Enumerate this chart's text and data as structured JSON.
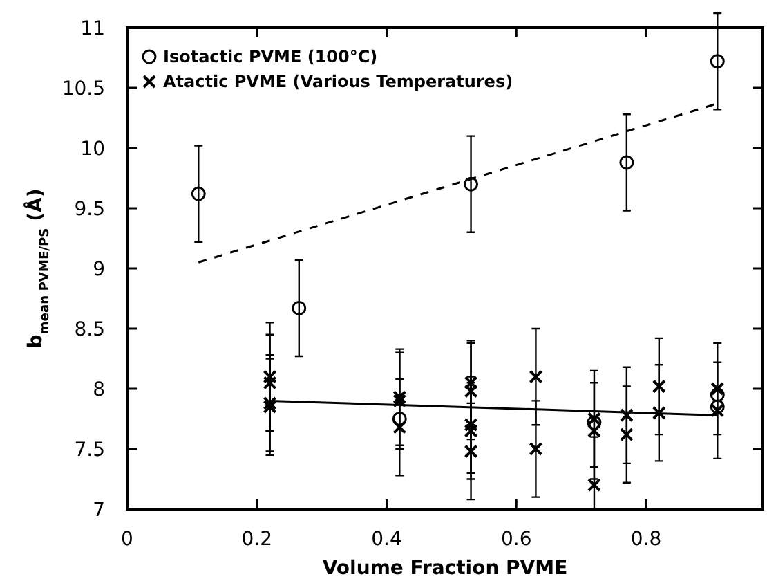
{
  "chart_data": {
    "type": "scatter",
    "xlabel": "Volume Fraction PVME",
    "ylabel": "b$_{mean PVME/PS}$ (Å)",
    "xlim": [
      0,
      0.98
    ],
    "ylim": [
      7,
      11
    ],
    "xticks": [
      0,
      0.2,
      0.4,
      0.6,
      0.8
    ],
    "yticks": [
      7,
      7.5,
      8,
      8.5,
      9,
      9.5,
      10,
      10.5,
      11
    ],
    "grid": false,
    "legend": "top left",
    "series": [
      {
        "name": "Isotactic PVME (100°C)",
        "color": "#000000",
        "marker": "circle",
        "x": [
          0.11,
          0.265,
          0.53,
          0.77,
          0.91,
          0.42,
          0.72,
          0.91,
          0.91
        ],
        "values": [
          9.62,
          8.67,
          9.7,
          9.88,
          10.72,
          7.75,
          7.72,
          7.95,
          7.85
        ],
        "errors": [
          0.4,
          0.4,
          0.4,
          0.4,
          0.4,
          null,
          null,
          null,
          null
        ]
      },
      {
        "name": "Atactic PVME (Various Temperatures)",
        "color": "#000000",
        "marker": "cross",
        "x": [
          0.22,
          0.22,
          0.22,
          0.22,
          0.42,
          0.42,
          0.42,
          0.53,
          0.53,
          0.53,
          0.53,
          0.53,
          0.63,
          0.63,
          0.72,
          0.72,
          0.72,
          0.77,
          0.77,
          0.82,
          0.82,
          0.91,
          0.91
        ],
        "values": [
          8.1,
          8.05,
          7.88,
          7.85,
          7.93,
          7.9,
          7.68,
          8.05,
          7.98,
          7.7,
          7.65,
          7.48,
          8.1,
          7.5,
          7.75,
          7.65,
          7.2,
          7.78,
          7.62,
          8.02,
          7.8,
          8.0,
          7.82
        ],
        "errors": [
          0.45,
          0.4,
          0.4,
          0.4,
          0.4,
          0.4,
          0.4,
          0.35,
          0.4,
          0.4,
          0.4,
          0.4,
          0.4,
          0.4,
          0.4,
          0.4,
          [
            7.0,
            7.6
          ],
          0.4,
          0.4,
          0.4,
          0.4,
          0.38,
          0.4
        ]
      },
      {
        "type": "line",
        "color": "#000000",
        "marker": "none",
        "line_style": "dashed",
        "x": [
          0.11,
          0.91
        ],
        "values": [
          9.05,
          10.37
        ]
      },
      {
        "type": "line",
        "color": "#000000",
        "marker": "none",
        "line_style": "solid",
        "x": [
          0.22,
          0.91
        ],
        "values": [
          7.9,
          7.78
        ]
      }
    ]
  }
}
